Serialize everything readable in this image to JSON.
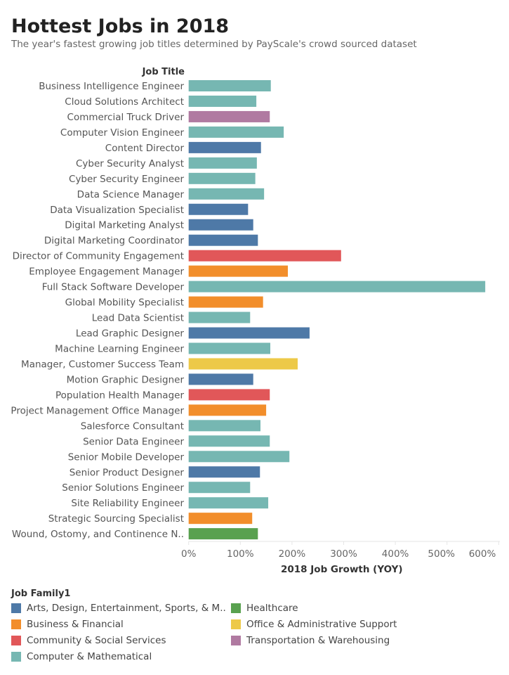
{
  "chart_data": {
    "type": "bar",
    "orientation": "horizontal",
    "title": "Hottest Jobs in 2018",
    "subtitle": "The year's fastest growing job titles determined by PayScale's crowd sourced dataset",
    "ylabel": "Job Title",
    "xlabel": "2018 Job Growth (YOY)",
    "xlim": [
      0,
      600
    ],
    "xticks": [
      "0%",
      "100%",
      "200%",
      "300%",
      "400%",
      "500%",
      "600%"
    ],
    "grid": false,
    "legend": {
      "title": "Job Family1",
      "placement": "bottom",
      "entries": [
        {
          "name": "Arts, Design, Entertainment, Sports, & M..",
          "color": "#4e79a7"
        },
        {
          "name": "Business & Financial",
          "color": "#f28e2b"
        },
        {
          "name": "Community & Social Services",
          "color": "#e15759"
        },
        {
          "name": "Computer & Mathematical",
          "color": "#76b7b2"
        },
        {
          "name": "Healthcare",
          "color": "#59a14f"
        },
        {
          "name": "Office & Administrative Support",
          "color": "#edc948"
        },
        {
          "name": "Transportation & Warehousing",
          "color": "#b07aa1"
        }
      ]
    },
    "categories": [
      "Business Intelligence Engineer",
      "Cloud Solutions Architect",
      "Commercial Truck Driver",
      "Computer Vision Engineer",
      "Content Director",
      "Cyber Security Analyst",
      "Cyber Security Engineer",
      "Data Science Manager",
      "Data Visualization Specialist",
      "Digital Marketing Analyst",
      "Digital Marketing Coordinator",
      "Director of Community Engagement",
      "Employee Engagement Manager",
      "Full Stack Software Developer",
      "Global Mobility Specialist",
      "Lead Data Scientist",
      "Lead Graphic Designer",
      "Machine Learning Engineer",
      "Manager, Customer Success Team",
      "Motion Graphic Designer",
      "Population Health Manager",
      "Project Management Office Manager",
      "Salesforce Consultant",
      "Senior Data Engineer",
      "Senior Mobile Developer",
      "Senior Product Designer",
      "Senior Solutions Engineer",
      "Site Reliability Engineer",
      "Strategic Sourcing Specialist",
      "Wound, Ostomy, and Continence N.."
    ],
    "values": [
      159,
      131,
      157,
      184,
      140,
      132,
      129,
      146,
      115,
      125,
      134,
      295,
      192,
      574,
      144,
      119,
      234,
      158,
      211,
      125,
      157,
      150,
      139,
      157,
      195,
      138,
      119,
      154,
      123,
      134
    ],
    "families": [
      3,
      3,
      6,
      3,
      0,
      3,
      3,
      3,
      0,
      0,
      0,
      2,
      1,
      3,
      1,
      3,
      0,
      3,
      5,
      0,
      2,
      1,
      3,
      3,
      3,
      0,
      3,
      3,
      1,
      4
    ]
  }
}
